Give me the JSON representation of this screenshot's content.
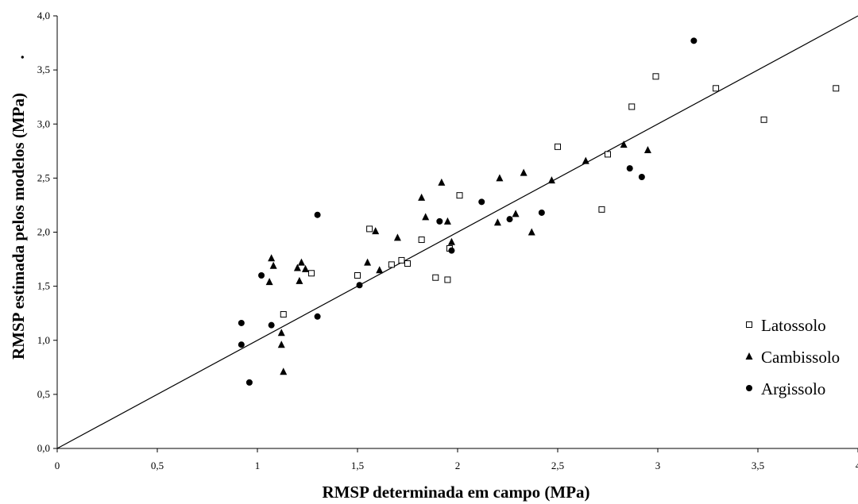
{
  "chart_data": {
    "type": "scatter",
    "xlabel": "RMSP determinada em campo (MPa)",
    "ylabel": "RMSP estimada pelos modelos (MPa)",
    "ylabel_suffix": ".",
    "xlim": [
      0,
      4
    ],
    "ylim": [
      0,
      4
    ],
    "x_ticks": [
      "0",
      "0,5",
      "1",
      "1,5",
      "2",
      "2,5",
      "3",
      "3,5",
      "4"
    ],
    "y_ticks": [
      "0,0",
      "0,5",
      "1,0",
      "1,5",
      "2,0",
      "2,5",
      "3,0",
      "3,5",
      "4,0"
    ],
    "grid": false,
    "legend_position": "right",
    "reference_line": {
      "x": [
        0,
        4
      ],
      "y": [
        0,
        4
      ]
    },
    "series": [
      {
        "name": "Latossolo",
        "marker": "open-square",
        "points": [
          [
            1.13,
            1.24
          ],
          [
            1.27,
            1.62
          ],
          [
            1.5,
            1.6
          ],
          [
            1.56,
            2.03
          ],
          [
            1.67,
            1.7
          ],
          [
            1.72,
            1.74
          ],
          [
            1.75,
            1.71
          ],
          [
            1.82,
            1.93
          ],
          [
            1.89,
            1.58
          ],
          [
            1.95,
            1.56
          ],
          [
            1.96,
            1.85
          ],
          [
            2.01,
            2.34
          ],
          [
            2.5,
            2.79
          ],
          [
            2.72,
            2.21
          ],
          [
            2.75,
            2.72
          ],
          [
            2.87,
            3.16
          ],
          [
            2.99,
            3.44
          ],
          [
            3.29,
            3.33
          ],
          [
            3.53,
            3.04
          ],
          [
            3.89,
            3.33
          ]
        ]
      },
      {
        "name": "Cambissolo",
        "marker": "filled-triangle",
        "points": [
          [
            1.06,
            1.54
          ],
          [
            1.07,
            1.76
          ],
          [
            1.08,
            1.69
          ],
          [
            1.12,
            1.07
          ],
          [
            1.12,
            0.96
          ],
          [
            1.13,
            0.71
          ],
          [
            1.2,
            1.67
          ],
          [
            1.21,
            1.55
          ],
          [
            1.22,
            1.72
          ],
          [
            1.24,
            1.66
          ],
          [
            1.55,
            1.72
          ],
          [
            1.59,
            2.01
          ],
          [
            1.61,
            1.65
          ],
          [
            1.7,
            1.95
          ],
          [
            1.82,
            2.32
          ],
          [
            1.84,
            2.14
          ],
          [
            1.92,
            2.46
          ],
          [
            1.95,
            2.1
          ],
          [
            1.97,
            1.91
          ],
          [
            2.2,
            2.09
          ],
          [
            2.21,
            2.5
          ],
          [
            2.29,
            2.17
          ],
          [
            2.33,
            2.55
          ],
          [
            2.37,
            2.0
          ],
          [
            2.47,
            2.48
          ],
          [
            2.64,
            2.66
          ],
          [
            2.83,
            2.81
          ],
          [
            2.95,
            2.76
          ]
        ]
      },
      {
        "name": "Argissolo",
        "marker": "filled-circle",
        "points": [
          [
            0.92,
            1.16
          ],
          [
            0.92,
            0.96
          ],
          [
            0.96,
            0.61
          ],
          [
            1.02,
            1.6
          ],
          [
            1.07,
            1.14
          ],
          [
            1.3,
            2.16
          ],
          [
            1.3,
            1.22
          ],
          [
            1.51,
            1.51
          ],
          [
            1.91,
            2.1
          ],
          [
            1.97,
            1.83
          ],
          [
            2.12,
            2.28
          ],
          [
            2.26,
            2.12
          ],
          [
            2.42,
            2.18
          ],
          [
            2.86,
            2.59
          ],
          [
            2.92,
            2.51
          ],
          [
            3.18,
            3.77
          ]
        ]
      }
    ]
  }
}
